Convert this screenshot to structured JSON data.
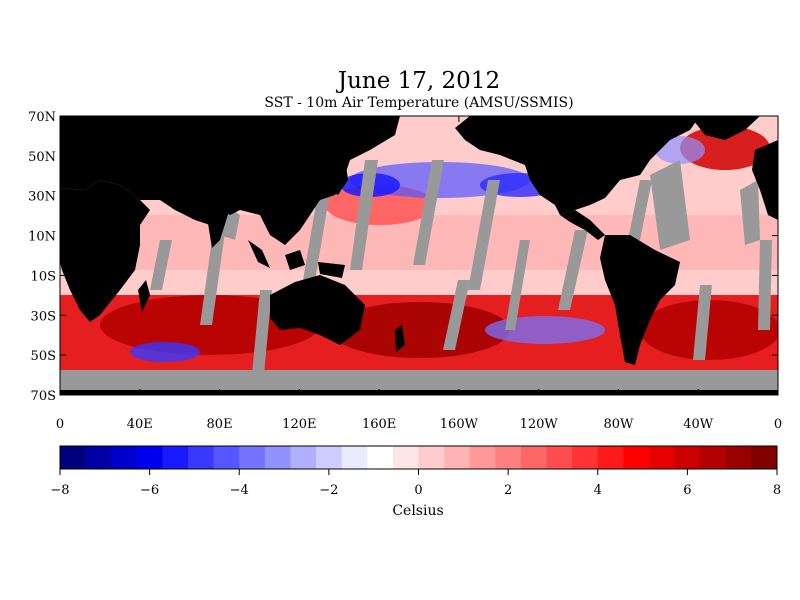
{
  "map": {
    "title": "June 17, 2012",
    "subtitle": "SST - 10m Air Temperature (AMSU/SSMIS)",
    "lat_labels": [
      "70N",
      "50N",
      "30N",
      "10N",
      "10S",
      "30S",
      "50S",
      "70S"
    ],
    "lon_labels": [
      "0",
      "40E",
      "80E",
      "120E",
      "160E",
      "160W",
      "120W",
      "80W",
      "40W",
      "0"
    ],
    "lat_range": [
      -70,
      70
    ],
    "lon_range": [
      0,
      360
    ],
    "land_color": "#000000",
    "no_data_color": "#999999"
  },
  "colorbar": {
    "min": -8,
    "max": 8,
    "tick_labels": [
      "-8",
      "-6",
      "-4",
      "-2",
      "0",
      "2",
      "4",
      "6",
      "8"
    ],
    "unit_label": "Celsius",
    "colors": [
      "#00007f",
      "#0000a6",
      "#0000cc",
      "#0000f0",
      "#1a1aff",
      "#3838ff",
      "#5656ff",
      "#7474ff",
      "#9292ff",
      "#b0b0ff",
      "#cdcdff",
      "#ebebff",
      "#ffffff",
      "#ffe6e6",
      "#ffcccc",
      "#ffb3b3",
      "#ff9999",
      "#ff8080",
      "#ff6666",
      "#ff4d4d",
      "#ff3333",
      "#ff1a1a",
      "#ff0000",
      "#e60000",
      "#cc0000",
      "#b30000",
      "#990000",
      "#800000"
    ]
  }
}
